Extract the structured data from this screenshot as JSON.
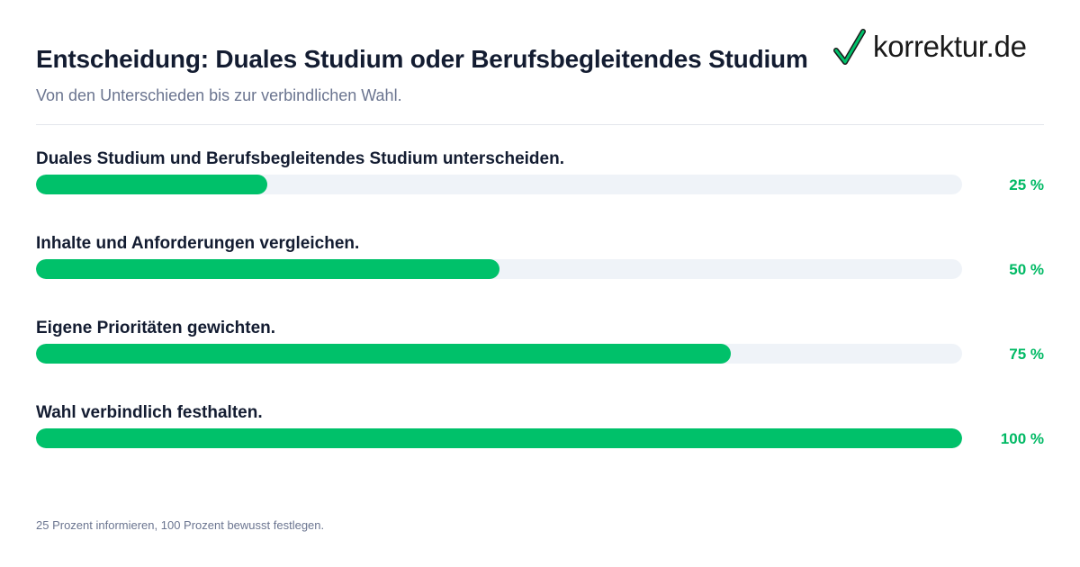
{
  "header": {
    "title": "Entscheidung: Duales Studium oder Berufsbegleitendes Studium",
    "subtitle": "Von den Unterschieden bis zur verbindlichen Wahl."
  },
  "logo": {
    "text": "korrektur.de",
    "icon": "checkmark-icon",
    "check_color": "#00c16a"
  },
  "colors": {
    "fill": "#00c16a",
    "track": "#eff3f8",
    "percent": "#00b964"
  },
  "chart_data": {
    "type": "bar",
    "orientation": "horizontal",
    "categories": [
      "Duales Studium und Berufsbegleitendes Studium unterscheiden.",
      "Inhalte und Anforderungen vergleichen.",
      "Eigene Prioritäten gewichten.",
      "Wahl verbindlich festhalten."
    ],
    "values": [
      25,
      50,
      75,
      100
    ],
    "value_labels": [
      "25 %",
      "50 %",
      "75 %",
      "100 %"
    ],
    "xlim": [
      0,
      100
    ],
    "title": "Entscheidung: Duales Studium oder Berufsbegleitendes Studium",
    "subtitle": "Von den Unterschieden bis zur verbindlichen Wahl.",
    "grid": false
  },
  "footnote": "25 Prozent informieren, 100 Prozent bewusst festlegen."
}
